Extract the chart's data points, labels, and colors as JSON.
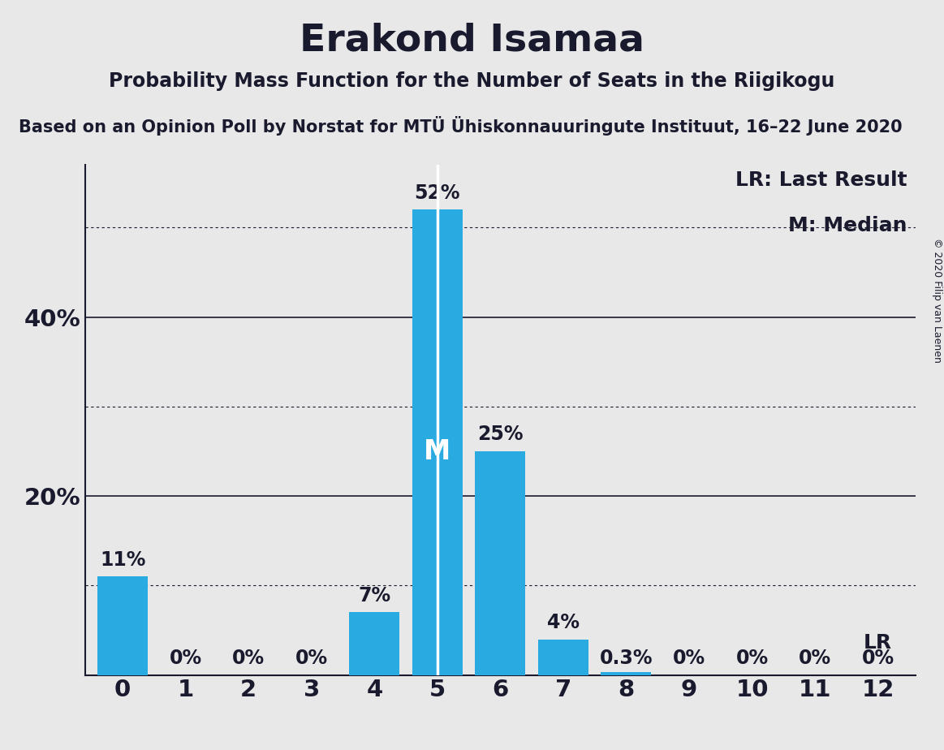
{
  "title": "Erakond Isamaa",
  "subtitle": "Probability Mass Function for the Number of Seats in the Riigikogu",
  "source_line": "Based on an Opinion Poll by Norstat for MTÜ Ühiskonnauuringute Instituut, 16–22 June 2020",
  "copyright": "© 2020 Filip van Laenen",
  "seats": [
    0,
    1,
    2,
    3,
    4,
    5,
    6,
    7,
    8,
    9,
    10,
    11,
    12
  ],
  "probabilities": [
    0.11,
    0.0,
    0.0,
    0.0,
    0.07,
    0.52,
    0.25,
    0.04,
    0.003,
    0.0,
    0.0,
    0.0,
    0.0
  ],
  "labels": [
    "11%",
    "0%",
    "0%",
    "0%",
    "7%",
    "52%",
    "25%",
    "4%",
    "0.3%",
    "0%",
    "0%",
    "0%",
    "0%"
  ],
  "bar_color": "#29ABE2",
  "median_seat": 5,
  "lr_seat": 12,
  "lr_label": "LR",
  "legend_lr": "LR: Last Result",
  "legend_m": "M: Median",
  "background_color": "#E8E8E8",
  "text_color": "#1a1a2e",
  "ylim": [
    0,
    0.57
  ],
  "solid_gridlines": [
    0.2,
    0.4
  ],
  "solid_ytick_labels": {
    "0.2": "20%",
    "0.4": "40%"
  },
  "dotted_gridlines": [
    0.1,
    0.3,
    0.5
  ],
  "title_fontsize": 34,
  "subtitle_fontsize": 17,
  "source_fontsize": 15,
  "axis_fontsize": 21,
  "bar_label_fontsize": 17,
  "legend_fontsize": 18,
  "copyright_fontsize": 9
}
